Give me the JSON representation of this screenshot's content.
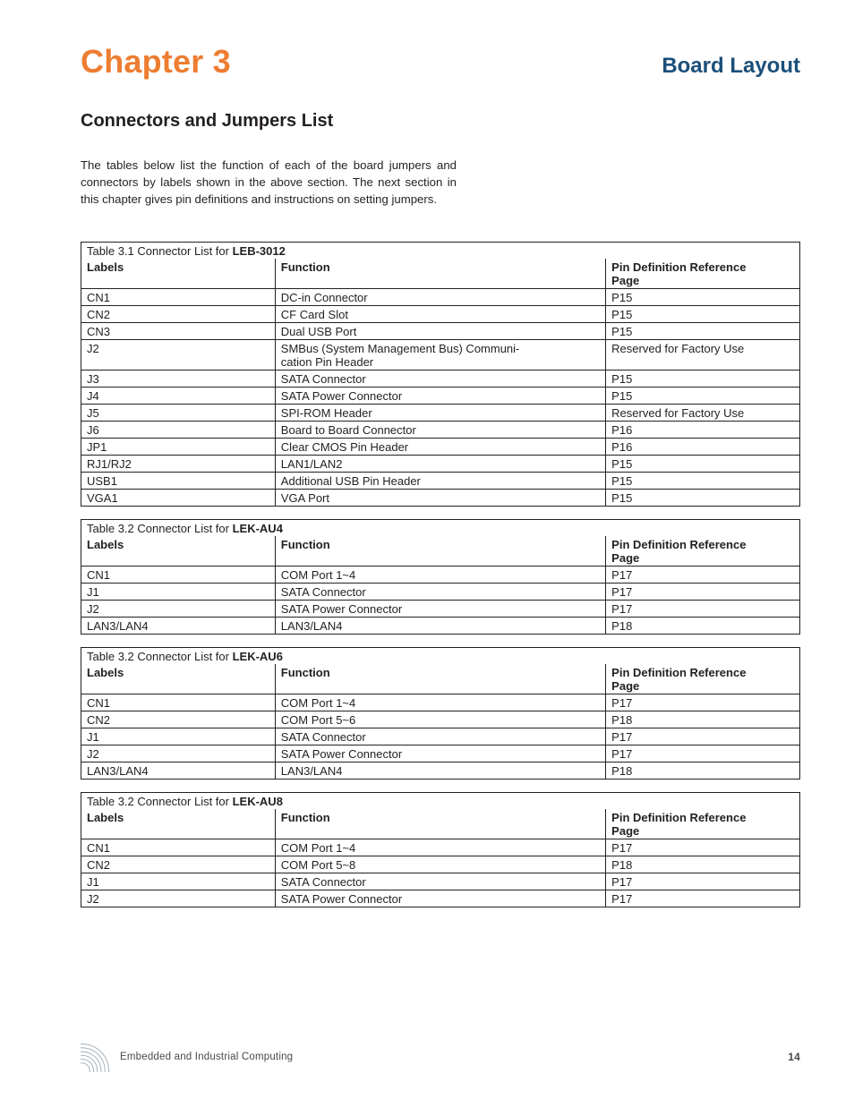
{
  "colors": {
    "accent": "#ed7d31",
    "section": "#1b4f7a",
    "text": "#231f20",
    "border": "#231f20",
    "icon_stroke": "#9aa7b0",
    "background": "#ffffff"
  },
  "header": {
    "chapter": "Chapter 3",
    "section": "Board Layout"
  },
  "subsection": "Connectors and Jumpers List",
  "intro": "The tables below list the function of each of the board jumpers and connectors by labels shown in the above section. The next section in this chapter gives pin definitions and instructions on setting jumpers.",
  "col_headers": {
    "labels": "Labels",
    "function": "Function",
    "ref_line1": "Pin Definition Reference",
    "ref_line2": "Page"
  },
  "tables": [
    {
      "caption_prefix": "Table 3.1 Connector List for ",
      "caption_model": "LEB-3012",
      "rows": [
        {
          "l": "CN1",
          "f": "DC-in Connector",
          "p": "P15"
        },
        {
          "l": "CN2",
          "f": "CF Card Slot",
          "p": "P15"
        },
        {
          "l": "CN3",
          "f": "Dual USB Port",
          "p": "P15"
        },
        {
          "l": "J2",
          "f": "SMBus (System Management Bus) Communi-\ncation Pin Header",
          "p": "Reserved for Factory Use"
        },
        {
          "l": "J3",
          "f": "SATA Connector",
          "p": "P15"
        },
        {
          "l": "J4",
          "f": "SATA Power Connector",
          "p": "P15"
        },
        {
          "l": "J5",
          "f": "SPI-ROM Header",
          "p": "Reserved for Factory Use"
        },
        {
          "l": "J6",
          "f": "Board to Board Connector",
          "p": "P16"
        },
        {
          "l": "JP1",
          "f": "Clear CMOS Pin Header",
          "p": "P16"
        },
        {
          "l": "RJ1/RJ2",
          "f": "LAN1/LAN2",
          "p": "P15"
        },
        {
          "l": "USB1",
          "f": "Additional USB Pin Header",
          "p": "P15"
        },
        {
          "l": "VGA1",
          "f": "VGA Port",
          "p": "P15"
        }
      ]
    },
    {
      "caption_prefix": "Table 3.2 Connector List for ",
      "caption_model": "LEK-AU4",
      "rows": [
        {
          "l": "CN1",
          "f": "COM Port 1~4",
          "p": "P17"
        },
        {
          "l": "J1",
          "f": "SATA Connector",
          "p": "P17"
        },
        {
          "l": "J2",
          "f": "SATA Power Connector",
          "p": "P17"
        },
        {
          "l": "LAN3/LAN4",
          "f": "LAN3/LAN4",
          "p": "P18"
        }
      ]
    },
    {
      "caption_prefix": "Table 3.2 Connector List for ",
      "caption_model": "LEK-AU6",
      "rows": [
        {
          "l": "CN1",
          "f": "COM Port 1~4",
          "p": "P17"
        },
        {
          "l": "CN2",
          "f": "COM Port 5~6",
          "p": "P18"
        },
        {
          "l": "J1",
          "f": "SATA Connector",
          "p": "P17"
        },
        {
          "l": "J2",
          "f": "SATA Power Connector",
          "p": "P17"
        },
        {
          "l": "LAN3/LAN4",
          "f": "LAN3/LAN4",
          "p": "P18"
        }
      ]
    },
    {
      "caption_prefix": "Table 3.2 Connector List for ",
      "caption_model": "LEK-AU8",
      "rows": [
        {
          "l": "CN1",
          "f": "COM Port 1~4",
          "p": "P17"
        },
        {
          "l": "CN2",
          "f": "COM Port 5~8",
          "p": "P18"
        },
        {
          "l": "J1",
          "f": "SATA Connector",
          "p": "P17"
        },
        {
          "l": "J2",
          "f": "SATA Power Connector",
          "p": "P17"
        }
      ]
    }
  ],
  "footer": {
    "text": "Embedded and Industrial Computing",
    "page": "14"
  }
}
